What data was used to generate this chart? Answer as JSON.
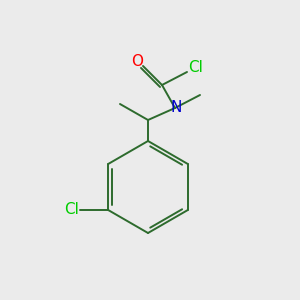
{
  "background_color": "#ebebeb",
  "bond_color": "#2d6b2d",
  "atom_colors": {
    "O": "#ff0000",
    "N": "#0000cc",
    "Cl": "#00cc00"
  },
  "figsize": [
    3.0,
    3.0
  ],
  "dpi": 100,
  "lw": 1.4,
  "font_size": 11
}
